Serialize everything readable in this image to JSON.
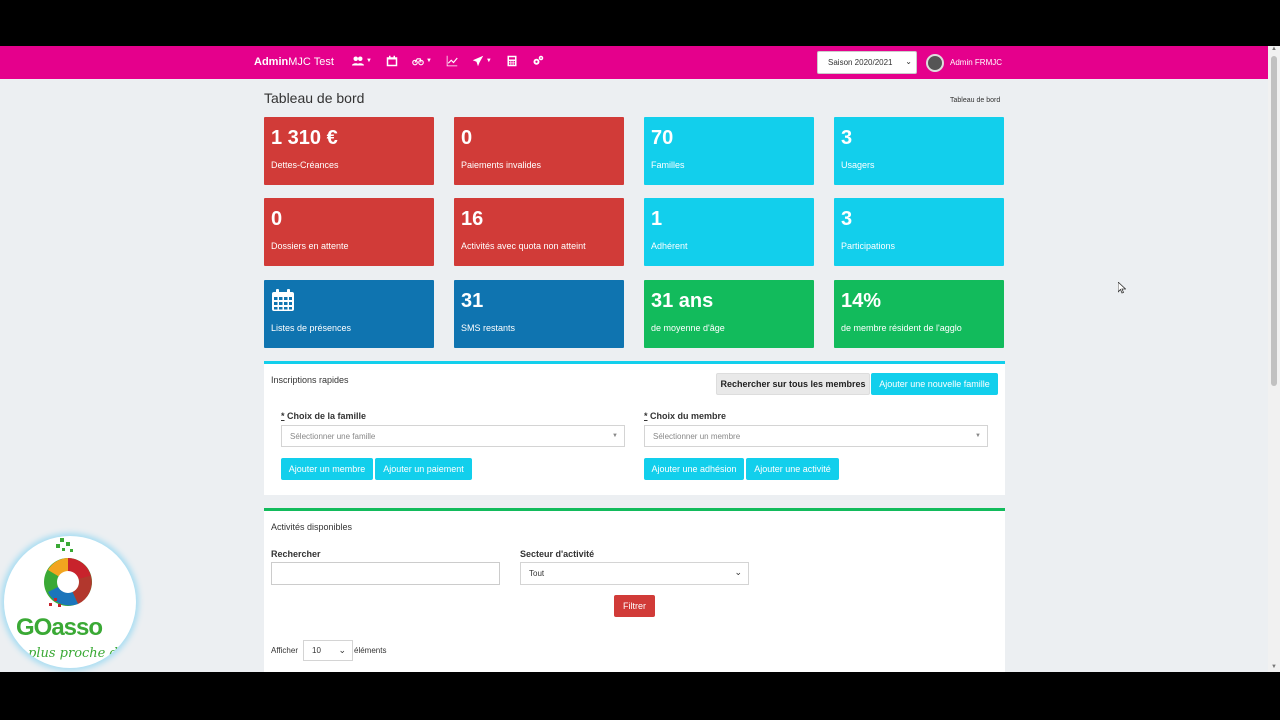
{
  "header": {
    "brand_bold": "Admin",
    "brand_rest": "MJC Test",
    "nav_icons": [
      "users-icon",
      "calendar-icon",
      "bicycle-icon",
      "chart-icon",
      "paper-plane-icon",
      "calculator-icon",
      "cogs-icon"
    ],
    "season": "Saison 2020/2021",
    "user": "Admin FRMJC",
    "accent_color": "#e5008c"
  },
  "page": {
    "title": "Tableau de bord",
    "breadcrumb": "Tableau de bord"
  },
  "tiles": [
    {
      "value": "1 310 €",
      "label": "Dettes-Créances",
      "color": "#d13b38"
    },
    {
      "value": "0",
      "label": "Paiements invalides",
      "color": "#d13b38"
    },
    {
      "value": "70",
      "label": "Familles",
      "color": "#12cfec"
    },
    {
      "value": "3",
      "label": "Usagers",
      "color": "#12cfec"
    },
    {
      "value": "0",
      "label": "Dossiers en attente",
      "color": "#d13b38"
    },
    {
      "value": "16",
      "label": "Activités avec quota non atteint",
      "color": "#d13b38"
    },
    {
      "value": "1",
      "label": "Adhérent",
      "color": "#12cfec"
    },
    {
      "value": "3",
      "label": "Participations",
      "color": "#12cfec"
    },
    {
      "value": "",
      "icon": "calendar-icon",
      "label": "Listes de présences",
      "color": "#0f74b0"
    },
    {
      "value": "31",
      "label": "SMS restants",
      "color": "#0f74b0"
    },
    {
      "value": "31 ans",
      "label": "de moyenne d'âge",
      "color": "#12bb5c"
    },
    {
      "value": "14%",
      "label": "de membre résident de l'agglo",
      "color": "#12bb5c"
    }
  ],
  "inscriptions": {
    "title": "Inscriptions rapides",
    "search_all": "Rechercher sur tous les membres",
    "add_family": "Ajouter une nouvelle famille",
    "family_label": "Choix de la famille",
    "family_placeholder": "Sélectionner une famille",
    "member_label": "Choix du membre",
    "member_placeholder": "Sélectionner un membre",
    "required_mark": "*",
    "add_member": "Ajouter un membre",
    "add_payment": "Ajouter un paiement",
    "add_membership": "Ajouter une adhésion",
    "add_activity": "Ajouter une activité"
  },
  "activities": {
    "title": "Activités disponibles",
    "search_label": "Rechercher",
    "sector_label": "Secteur d'activité",
    "sector_value": "Tout",
    "filter": "Filtrer",
    "show_prefix": "Afficher",
    "show_value": "10",
    "show_suffix": "éléments"
  },
  "logo": {
    "text": "GOasso",
    "tagline": "plus proche de"
  }
}
